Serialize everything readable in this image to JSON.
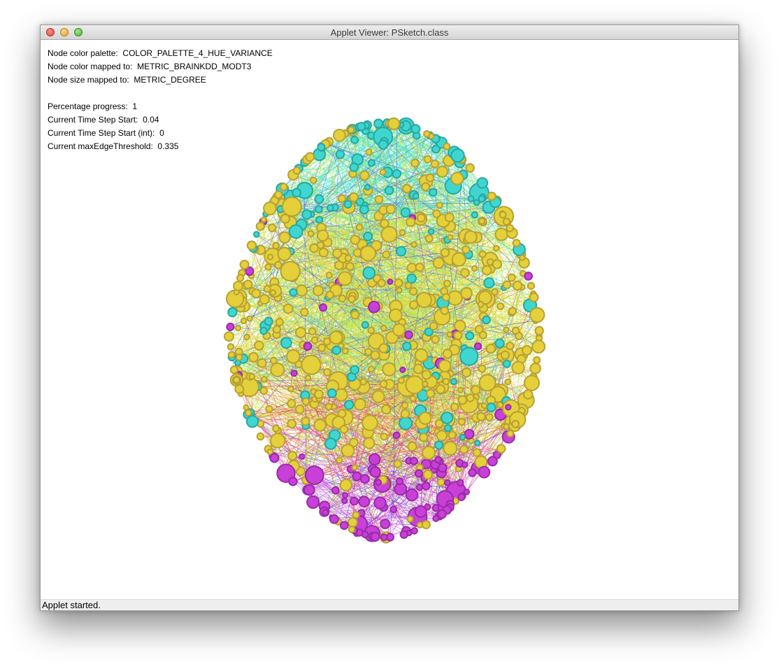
{
  "window": {
    "title": "Applet Viewer: PSketch.class",
    "buttons": {
      "close": "close-button",
      "minimize": "minimize-button",
      "zoom": "zoom-button"
    }
  },
  "info": {
    "palette_label": "Node color palette:",
    "palette_value": "COLOR_PALETTE_4_HUE_VARIANCE",
    "color_label": "Node color mapped to:",
    "color_value": "METRIC_BRAINKDD_MODT3",
    "size_label": "Node size mapped to:",
    "size_value": "METRIC_DEGREE",
    "progress_label": "Percentage progress:",
    "progress_value": "1",
    "ts_label": "Current Time Step Start:",
    "ts_value": "0.04",
    "tsint_label": "Current Time Step Start (int):",
    "tsint_value": "0",
    "threshold_label": "Current maxEdgeThreshold:",
    "threshold_value": "0.335"
  },
  "visualization": {
    "type": "brain network graph",
    "node_colors": [
      "#e4d03a",
      "#3fd6cf",
      "#c840d8"
    ],
    "edge_colors": [
      "#3fe0d8",
      "#a8e840",
      "#e8d83a",
      "#e83a6a",
      "#4a4ae8",
      "#c840e0"
    ]
  },
  "status": {
    "text": "Applet started."
  }
}
